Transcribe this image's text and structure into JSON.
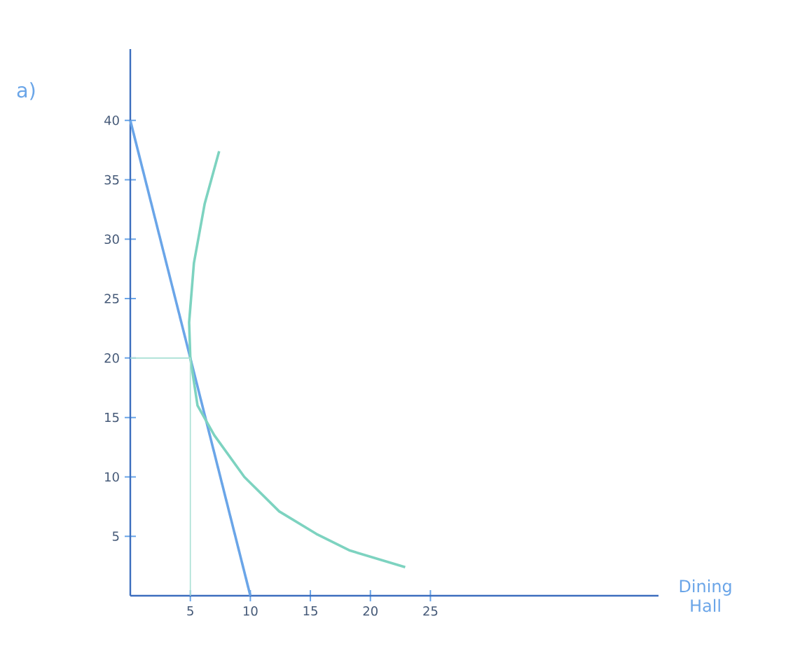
{
  "chart_data": {
    "type": "line",
    "xlabel": "Dining Hall",
    "annotations": [
      "a)"
    ],
    "xlim": [
      0,
      44
    ],
    "ylim": [
      0,
      46
    ],
    "xticks": [
      5,
      10,
      15,
      20,
      25
    ],
    "yticks": [
      5,
      10,
      15,
      20,
      25,
      30,
      35,
      40
    ],
    "series": [
      {
        "x": [
          0,
          10
        ],
        "values": [
          40,
          0
        ],
        "color": "#6aa5e8"
      },
      {
        "x": [
          7.4,
          6.2,
          5.3,
          4.9,
          5,
          5.6,
          7,
          9.5,
          12.4,
          15.5,
          18.3,
          22.9
        ],
        "values": [
          37.4,
          33,
          28,
          23,
          20,
          16,
          13.5,
          10,
          7.1,
          5.2,
          3.8,
          2.4
        ],
        "color": "#7dd3c0"
      },
      {
        "x": [
          0,
          5,
          5
        ],
        "values": [
          20,
          20,
          0
        ],
        "color": "#a8e0d4"
      }
    ]
  }
}
